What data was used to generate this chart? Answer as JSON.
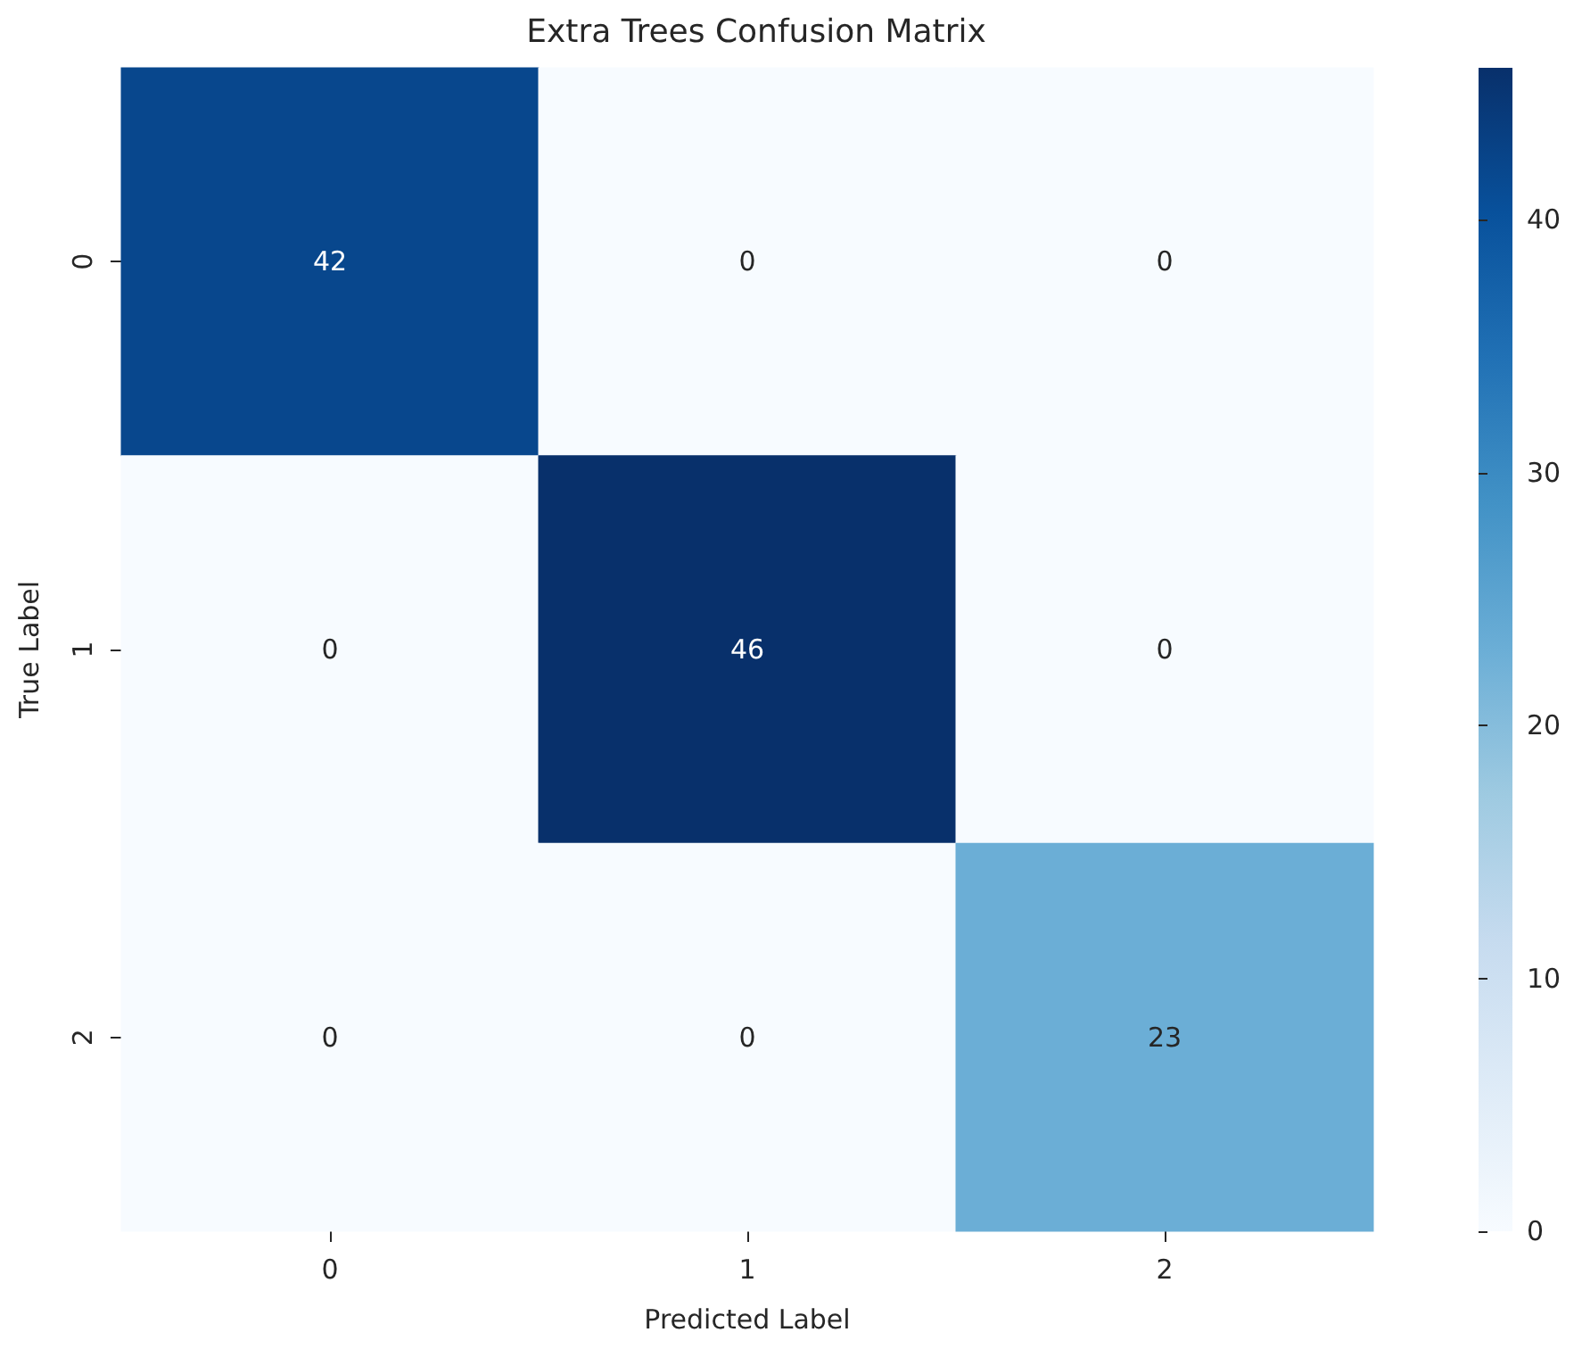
{
  "chart_data": {
    "type": "heatmap",
    "title": "Extra Trees Confusion Matrix",
    "xlabel": "Predicted Label",
    "ylabel": "True Label",
    "categories": [
      "0",
      "1",
      "2"
    ],
    "y_categories": [
      "0",
      "1",
      "2"
    ],
    "cells": [
      [
        42,
        0,
        0
      ],
      [
        0,
        46,
        0
      ],
      [
        0,
        0,
        23
      ]
    ],
    "clim": [
      0,
      46
    ],
    "cticks": [
      0,
      10,
      20,
      30,
      40
    ],
    "data_labels": true
  }
}
